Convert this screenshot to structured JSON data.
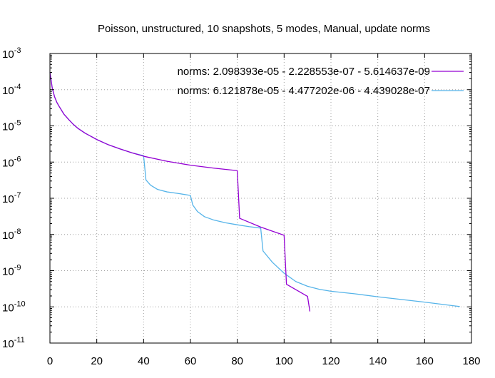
{
  "chart_data": {
    "type": "line",
    "title": "Poisson, unstructured, 10 snapshots, 5 modes, Manual, update norms",
    "xlabel": "",
    "ylabel": "",
    "xlim": [
      0,
      180
    ],
    "ylim": [
      1e-11,
      0.001
    ],
    "yscale": "log",
    "grid": true,
    "legend_position": "top-right",
    "x_ticks": [
      0,
      20,
      40,
      60,
      80,
      100,
      120,
      140,
      160,
      180
    ],
    "y_ticks": [
      {
        "value": 0.001,
        "mantissa": "10",
        "exponent": "-3"
      },
      {
        "value": 0.0001,
        "mantissa": "10",
        "exponent": "-4"
      },
      {
        "value": 1e-05,
        "mantissa": "10",
        "exponent": "-5"
      },
      {
        "value": 1e-06,
        "mantissa": "10",
        "exponent": "-6"
      },
      {
        "value": 1e-07,
        "mantissa": "10",
        "exponent": "-7"
      },
      {
        "value": 1e-08,
        "mantissa": "10",
        "exponent": "-8"
      },
      {
        "value": 1e-09,
        "mantissa": "10",
        "exponent": "-9"
      },
      {
        "value": 1e-10,
        "mantissa": "10",
        "exponent": "-10"
      },
      {
        "value": 1e-11,
        "mantissa": "10",
        "exponent": "-11"
      }
    ],
    "series": [
      {
        "name": "norms: 2.098393e-05 - 2.228553e-07 - 5.614637e-09",
        "color": "#9400d3",
        "x": [
          0,
          1,
          2,
          3,
          4,
          6,
          8,
          10,
          12,
          15,
          20,
          25,
          30,
          35,
          40,
          50,
          60,
          70,
          80,
          81,
          90,
          100,
          101,
          110,
          111
        ],
        "y": [
          0.0003,
          0.00011,
          6.3e-05,
          4.4e-05,
          3.4e-05,
          2.1e-05,
          1.5e-05,
          1.1e-05,
          8.5e-06,
          6.3e-06,
          4.2e-06,
          3e-06,
          2.3e-06,
          1.8e-06,
          1.45e-06,
          1.05e-06,
          8.2e-07,
          6.8e-07,
          5.8e-07,
          2.8e-08,
          1.6e-08,
          9.5e-09,
          4.2e-10,
          1.95e-10,
          7.5e-11
        ]
      },
      {
        "name": "norms: 6.121878e-05 - 4.477202e-06 - 4.439028e-07",
        "color": "#56b4e9",
        "x": [
          0,
          1,
          2,
          3,
          4,
          6,
          8,
          10,
          12,
          15,
          20,
          25,
          30,
          35,
          40,
          41,
          43,
          46,
          50,
          55,
          60,
          61,
          63,
          66,
          70,
          75,
          80,
          85,
          90,
          91,
          95,
          100,
          105,
          110,
          115,
          120,
          130,
          140,
          150,
          160,
          170,
          175
        ],
        "y": [
          0.0003,
          0.00011,
          6.3e-05,
          4.4e-05,
          3.4e-05,
          2.1e-05,
          1.5e-05,
          1.1e-05,
          8.5e-06,
          6.3e-06,
          4.2e-06,
          3e-06,
          2.3e-06,
          1.8e-06,
          1.5e-06,
          3.2e-07,
          2.3e-07,
          1.75e-07,
          1.5e-07,
          1.35e-07,
          1.2e-07,
          6.5e-08,
          4.3e-08,
          3.1e-08,
          2.5e-08,
          2.1e-08,
          1.85e-08,
          1.65e-08,
          1.5e-08,
          3.5e-09,
          1.7e-09,
          8.5e-10,
          5e-10,
          3.7e-10,
          3.05e-10,
          2.7e-10,
          2.3e-10,
          1.9e-10,
          1.6e-10,
          1.35e-10,
          1.12e-10,
          1.02e-10
        ]
      }
    ]
  }
}
